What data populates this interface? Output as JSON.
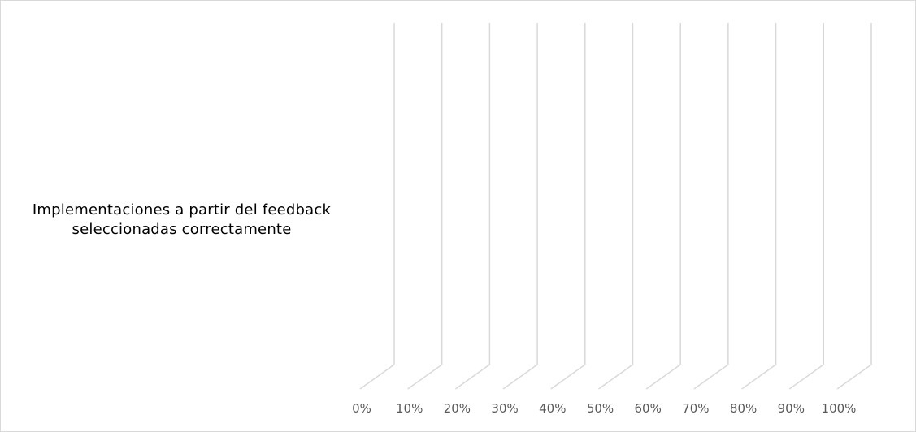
{
  "chart_data": {
    "type": "bar",
    "orientation": "horizontal",
    "three_d": true,
    "categories": [
      [
        "Implementaciones a partir del feedback",
        "seleccionadas correctamente"
      ]
    ],
    "series": [],
    "x_tick_labels": [
      "0%",
      "10%",
      "20%",
      "30%",
      "40%",
      "50%",
      "60%",
      "70%",
      "80%",
      "90%",
      "100%"
    ],
    "xlim": [
      0,
      1
    ],
    "grid": true,
    "colors": {
      "gridline": "#d9d9d9",
      "tick_text": "#595959",
      "category_text": "#000000",
      "border": "#d9d9d9"
    }
  }
}
